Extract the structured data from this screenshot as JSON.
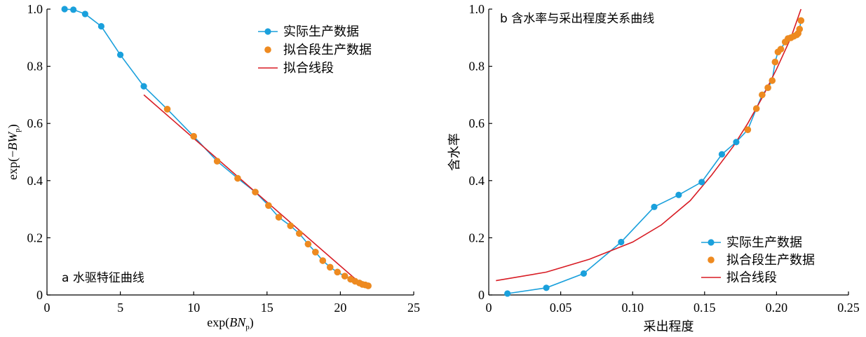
{
  "colors": {
    "actual": "#1aa0dc",
    "fitted_points": "#ee8a20",
    "fitted_line": "#d81c24",
    "axis": "#000000"
  },
  "chart_data": [
    {
      "type": "line",
      "title": "a 水驱特征曲线",
      "xlabel": "exp(BN_p)",
      "ylabel": "exp(−BW_p)",
      "xlim": [
        0,
        25
      ],
      "ylim": [
        0,
        1.0
      ],
      "x_ticks": [
        "0",
        "5",
        "10",
        "15",
        "20",
        "25"
      ],
      "y_ticks": [
        "0",
        "0.2",
        "0.4",
        "0.6",
        "0.8",
        "1.0"
      ],
      "x_tick_values": [
        0,
        5,
        10,
        15,
        20,
        25
      ],
      "y_tick_values": [
        0,
        0.2,
        0.4,
        0.6,
        0.8,
        1.0
      ],
      "legend_position": "top-right",
      "grid": false,
      "series": [
        {
          "name": "实际生产数据",
          "kind": "line-marker",
          "points": [
            [
              1.2,
              1.0
            ],
            [
              1.8,
              0.998
            ],
            [
              2.6,
              0.983
            ],
            [
              3.7,
              0.94
            ],
            [
              5.0,
              0.84
            ],
            [
              6.6,
              0.73
            ],
            [
              8.2,
              0.65
            ],
            [
              10.0,
              0.555
            ],
            [
              11.6,
              0.468
            ],
            [
              13.0,
              0.408
            ],
            [
              14.2,
              0.36
            ],
            [
              15.1,
              0.313
            ],
            [
              15.8,
              0.272
            ],
            [
              16.6,
              0.242
            ],
            [
              17.2,
              0.215
            ],
            [
              17.8,
              0.178
            ],
            [
              18.3,
              0.15
            ],
            [
              18.8,
              0.12
            ],
            [
              19.3,
              0.097
            ],
            [
              19.8,
              0.08
            ],
            [
              20.3,
              0.066
            ],
            [
              20.7,
              0.055
            ],
            [
              21.0,
              0.048
            ],
            [
              21.3,
              0.042
            ],
            [
              21.5,
              0.037
            ],
            [
              21.7,
              0.035
            ],
            [
              21.9,
              0.032
            ]
          ]
        },
        {
          "name": "拟合段生产数据",
          "kind": "marker",
          "points": [
            [
              8.2,
              0.65
            ],
            [
              10.0,
              0.555
            ],
            [
              11.6,
              0.468
            ],
            [
              13.0,
              0.408
            ],
            [
              14.2,
              0.36
            ],
            [
              15.1,
              0.313
            ],
            [
              15.8,
              0.272
            ],
            [
              16.6,
              0.242
            ],
            [
              17.2,
              0.215
            ],
            [
              17.8,
              0.178
            ],
            [
              18.3,
              0.15
            ],
            [
              18.8,
              0.12
            ],
            [
              19.3,
              0.097
            ],
            [
              19.8,
              0.08
            ],
            [
              20.3,
              0.066
            ],
            [
              20.7,
              0.055
            ],
            [
              21.0,
              0.048
            ],
            [
              21.3,
              0.042
            ],
            [
              21.5,
              0.037
            ],
            [
              21.7,
              0.035
            ],
            [
              21.9,
              0.032
            ]
          ]
        },
        {
          "name": "拟合线段",
          "kind": "line",
          "points": [
            [
              6.6,
              0.7
            ],
            [
              21.6,
              0.03
            ]
          ]
        }
      ]
    },
    {
      "type": "line",
      "title": "b 含水率与采出程度关系曲线",
      "xlabel": "采出程度",
      "ylabel": "含水率",
      "xlim": [
        0,
        0.25
      ],
      "ylim": [
        0,
        1.0
      ],
      "x_ticks": [
        "0",
        "0.05",
        "0.10",
        "0.15",
        "0.20",
        "0.25"
      ],
      "y_ticks": [
        "0",
        "0.2",
        "0.4",
        "0.6",
        "0.8",
        "1.0"
      ],
      "x_tick_values": [
        0,
        0.05,
        0.1,
        0.15,
        0.2,
        0.25
      ],
      "y_tick_values": [
        0,
        0.2,
        0.4,
        0.6,
        0.8,
        1.0
      ],
      "legend_position": "bottom-right",
      "grid": false,
      "series": [
        {
          "name": "实际生产数据",
          "kind": "line-marker",
          "points": [
            [
              0.013,
              0.005
            ],
            [
              0.04,
              0.025
            ],
            [
              0.066,
              0.075
            ],
            [
              0.092,
              0.185
            ],
            [
              0.115,
              0.308
            ],
            [
              0.132,
              0.35
            ],
            [
              0.148,
              0.395
            ],
            [
              0.162,
              0.492
            ],
            [
              0.172,
              0.535
            ],
            [
              0.18,
              0.578
            ],
            [
              0.186,
              0.652
            ],
            [
              0.19,
              0.7
            ],
            [
              0.194,
              0.725
            ],
            [
              0.197,
              0.75
            ],
            [
              0.199,
              0.815
            ],
            [
              0.201,
              0.85
            ],
            [
              0.203,
              0.86
            ],
            [
              0.206,
              0.885
            ],
            [
              0.208,
              0.897
            ],
            [
              0.21,
              0.9
            ],
            [
              0.212,
              0.905
            ],
            [
              0.214,
              0.91
            ],
            [
              0.215,
              0.915
            ],
            [
              0.216,
              0.93
            ],
            [
              0.217,
              0.96
            ]
          ]
        },
        {
          "name": "拟合段生产数据",
          "kind": "marker",
          "points": [
            [
              0.18,
              0.578
            ],
            [
              0.186,
              0.652
            ],
            [
              0.19,
              0.7
            ],
            [
              0.194,
              0.725
            ],
            [
              0.197,
              0.75
            ],
            [
              0.199,
              0.815
            ],
            [
              0.201,
              0.85
            ],
            [
              0.203,
              0.86
            ],
            [
              0.206,
              0.885
            ],
            [
              0.208,
              0.897
            ],
            [
              0.21,
              0.9
            ],
            [
              0.212,
              0.905
            ],
            [
              0.214,
              0.91
            ],
            [
              0.215,
              0.915
            ],
            [
              0.216,
              0.93
            ],
            [
              0.217,
              0.96
            ]
          ]
        },
        {
          "name": "拟合线段",
          "kind": "line",
          "points": [
            [
              0.005,
              0.05
            ],
            [
              0.04,
              0.08
            ],
            [
              0.07,
              0.125
            ],
            [
              0.1,
              0.185
            ],
            [
              0.12,
              0.245
            ],
            [
              0.14,
              0.33
            ],
            [
              0.155,
              0.42
            ],
            [
              0.17,
              0.52
            ],
            [
              0.18,
              0.6
            ],
            [
              0.19,
              0.69
            ],
            [
              0.2,
              0.79
            ],
            [
              0.21,
              0.9
            ],
            [
              0.217,
              1.0
            ]
          ]
        }
      ]
    }
  ]
}
